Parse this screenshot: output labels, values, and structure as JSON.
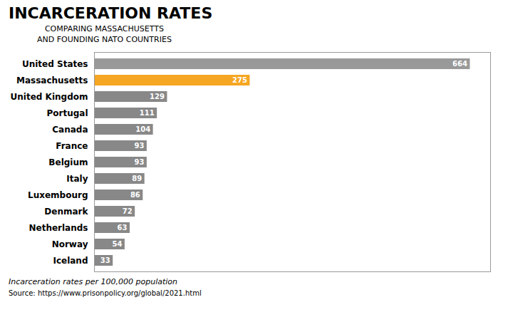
{
  "chart_data": {
    "type": "bar",
    "orientation": "horizontal",
    "title": "INCARCERATION RATES",
    "subtitle": "COMPARING MASSACHUSETTS\nAND FOUNDING NATO COUNTRIES",
    "xlabel": "Incarceration rates per 100,000 population",
    "source": "Source: https://www.prisonpolicy.org/global/2021.html",
    "categories": [
      "United States",
      "Massachusetts",
      "United Kingdom",
      "Portugal",
      "Canada",
      "France",
      "Belgium",
      "Italy",
      "Luxembourg",
      "Denmark",
      "Netherlands",
      "Norway",
      "Iceland"
    ],
    "values": [
      664,
      275,
      129,
      111,
      104,
      93,
      93,
      89,
      86,
      72,
      63,
      54,
      33
    ],
    "colors": [
      "#999999",
      "#f5a623",
      "#888888",
      "#888888",
      "#888888",
      "#888888",
      "#888888",
      "#888888",
      "#888888",
      "#888888",
      "#888888",
      "#888888",
      "#888888"
    ],
    "xlim": [
      0,
      700
    ],
    "xticks": [],
    "data_labels": true,
    "tick_labels": "y",
    "grid": false
  }
}
